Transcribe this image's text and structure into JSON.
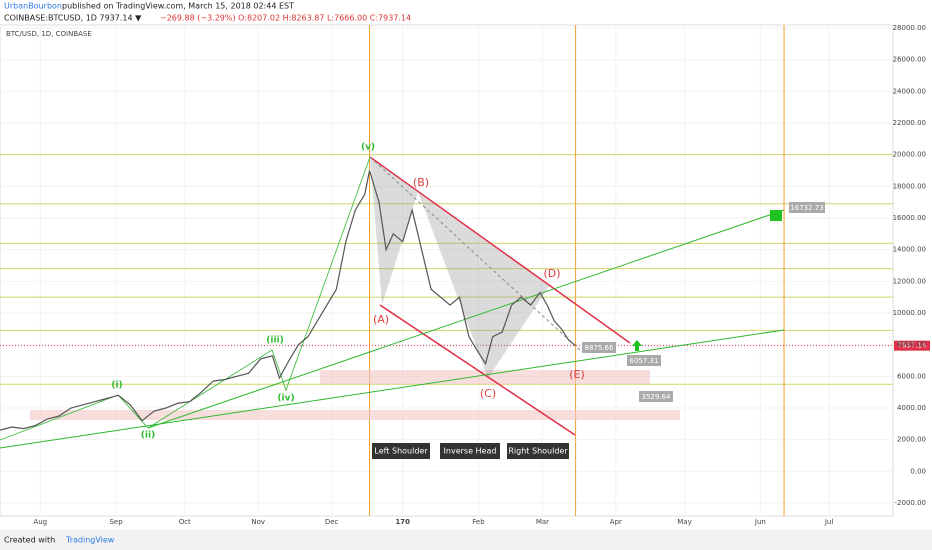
{
  "header": {
    "author": "UrbanBourbon",
    "published": "published on TradingView.com, March 15, 2018 02:44 EST",
    "symbol_line": "COINBASE:BTCUSD, 1D 7937.14 ▼",
    "quote_line": "−269.88 (−3.29%) O:8207.02 H:8263.87 L:7666.00 C:7937.14"
  },
  "footer": {
    "created": "Created with",
    "brand": "TradingView"
  },
  "annotations": {
    "waves": [
      "(v)",
      "(i)",
      "(ii)",
      "(iii)",
      "(iv)",
      "(B)",
      "(A)",
      "(C)",
      "(D)",
      "(E)"
    ],
    "shoulders": [
      "Left Shoulder",
      "Inverse Head",
      "Right Shoulder"
    ],
    "prices": [
      "16732.73",
      "8875.66",
      "6057.31",
      "3529.64"
    ]
  },
  "chart_data": {
    "type": "line",
    "title": "BTC/USD, 1D, COINBASE",
    "color": "#555555",
    "x": [
      0,
      5,
      10,
      15,
      20,
      25,
      30,
      35,
      40,
      45,
      50,
      55,
      60,
      65,
      70,
      75,
      80,
      85,
      90,
      95,
      100,
      105,
      110,
      115,
      118,
      122,
      126,
      130,
      134,
      138,
      142,
      146,
      150,
      154,
      156,
      160,
      163,
      166,
      170,
      174,
      178,
      182,
      186,
      190,
      194,
      198,
      202,
      205,
      208,
      212,
      216,
      220,
      224,
      228,
      231,
      234,
      237,
      240,
      243
    ],
    "values": [
      2600,
      2800,
      2700,
      2900,
      3300,
      3500,
      4000,
      4200,
      4400,
      4600,
      4800,
      4200,
      3200,
      3800,
      4000,
      4300,
      4400,
      5000,
      5700,
      5800,
      6000,
      6200,
      7100,
      7300,
      5900,
      7000,
      8000,
      8500,
      9500,
      10500,
      11500,
      14500,
      16500,
      17500,
      19000,
      17000,
      14000,
      15000,
      14500,
      16500,
      14000,
      11500,
      11000,
      10500,
      11000,
      8500,
      7500,
      6800,
      8500,
      8800,
      10500,
      11000,
      10500,
      11300,
      10500,
      9500,
      9000,
      8300,
      7937.14
    ],
    "xlim": [
      0,
      377
    ],
    "xticks": [
      {
        "value": 17,
        "label": "Aug"
      },
      {
        "value": 49,
        "label": "Sep"
      },
      {
        "value": 78,
        "label": "Oct"
      },
      {
        "value": 109,
        "label": "Nov"
      },
      {
        "value": 140,
        "label": "Dec"
      },
      170,
      {
        "value": 202,
        "label": "Feb"
      },
      {
        "value": 229,
        "label": "Mar"
      },
      {
        "value": 260,
        "label": "Apr"
      },
      {
        "value": 289,
        "label": "May"
      },
      {
        "value": 321,
        "label": "Jun"
      },
      {
        "value": 350,
        "label": "Jul"
      }
    ],
    "ylim": [
      -2820,
      28190
    ],
    "yticks": [
      {
        "value": -2000,
        "label": "-2000.00"
      },
      {
        "value": 0,
        "label": "0.00"
      },
      {
        "value": 2000,
        "label": "2000.00"
      },
      {
        "value": 4000,
        "label": "4000.00"
      },
      {
        "value": 6000,
        "label": "6000.00"
      },
      {
        "value": 8000,
        "label": "8000.00"
      },
      {
        "value": 10000,
        "label": "10000.00"
      },
      {
        "value": 12000,
        "label": "12000.00"
      },
      {
        "value": 14000,
        "label": "14000.00"
      },
      {
        "value": 16000,
        "label": "16000.00"
      },
      {
        "value": 18000,
        "label": "18000.00"
      },
      {
        "value": 20000,
        "label": "20000.00"
      },
      {
        "value": 22000,
        "label": "22000.00"
      },
      {
        "value": 24000,
        "label": "24000.00"
      },
      {
        "value": 26000,
        "label": "26000.00"
      },
      {
        "value": 28000,
        "label": "28000.00"
      }
    ],
    "levels": [
      20000,
      16900,
      14400,
      12800,
      11000,
      8900,
      5500
    ],
    "level_color": "#d4d46a",
    "vlines": [
      156,
      243,
      331
    ],
    "vline_color": "#f0a030",
    "last_price": 7937.14,
    "last_price_label": "7937.14",
    "last_color": "#e0304a"
  }
}
